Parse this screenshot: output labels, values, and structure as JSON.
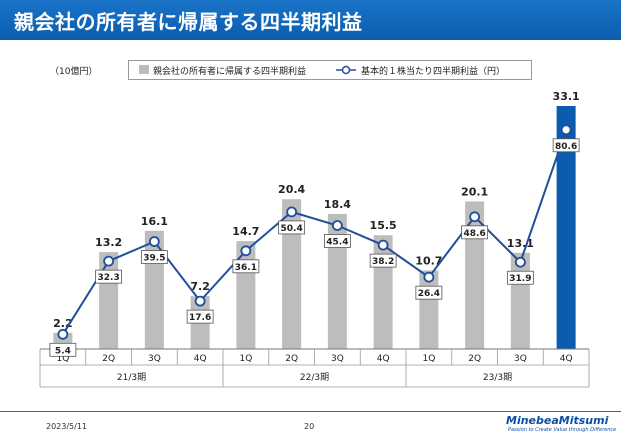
{
  "page": {
    "title": "親会社の所有者に帰属する四半期利益",
    "date": "2023/5/11",
    "page_number": "20",
    "logo_text": "MinebeaMitsumi",
    "logo_tagline": "Passion to Create Value through Difference"
  },
  "colors": {
    "title_bar": "#0b5cae",
    "bar_gray": "#bdbdbd",
    "bar_highlight": "#0b5cae",
    "line": "#1f4e9c"
  },
  "chart_data": {
    "type": "bar",
    "unit_label": "（10億円）",
    "categories": [
      "1Q",
      "2Q",
      "3Q",
      "4Q",
      "1Q",
      "2Q",
      "3Q",
      "4Q",
      "1Q",
      "2Q",
      "3Q",
      "4Q"
    ],
    "groups": [
      {
        "label": "21/3期",
        "span": 4
      },
      {
        "label": "22/3期",
        "span": 4
      },
      {
        "label": "23/3期",
        "span": 4
      }
    ],
    "series": [
      {
        "name": "親会社の所有者に帰属する四半期利益",
        "type": "bar",
        "values": [
          2.2,
          13.2,
          16.1,
          7.2,
          14.7,
          20.4,
          18.4,
          15.5,
          10.7,
          20.1,
          13.1,
          33.1
        ],
        "value_labels": [
          "2.2",
          "13.2",
          "16.1",
          "7.2",
          "14.7",
          "20.4",
          "18.4",
          "15.5",
          "10.7",
          "20.1",
          "13.1",
          "33.1"
        ],
        "highlight_index": 11
      },
      {
        "name": "基本的１株当たり四半期利益（円）",
        "type": "line",
        "values": [
          5.4,
          32.3,
          39.5,
          17.6,
          36.1,
          50.4,
          45.4,
          38.2,
          26.4,
          48.6,
          31.9,
          80.6
        ],
        "value_labels": [
          "5.4",
          "32.3",
          "39.5",
          "17.6",
          "36.1",
          "50.4",
          "45.4",
          "38.2",
          "26.4",
          "48.6",
          "31.9",
          "80.6"
        ]
      }
    ],
    "ylim_bar": [
      0,
      33.1
    ],
    "ylim_line": [
      0,
      100
    ],
    "legend_position": "top",
    "grid": false
  }
}
